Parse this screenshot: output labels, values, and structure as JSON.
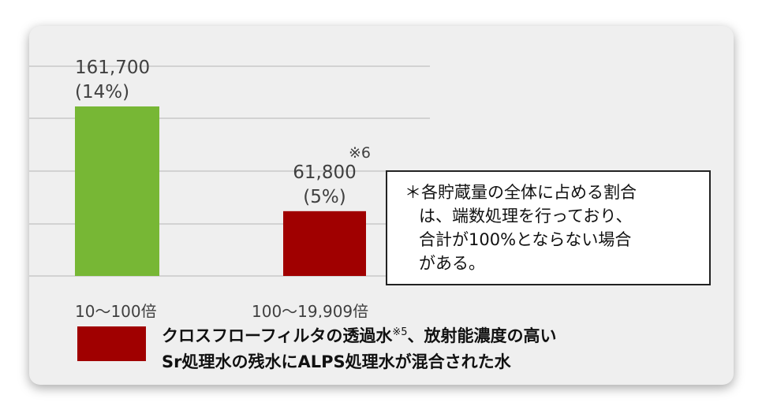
{
  "chart_data": {
    "type": "bar",
    "categories": [
      "10～100倍",
      "100～19,909倍"
    ],
    "values": [
      161700,
      61800
    ],
    "data_labels": [
      "161,700",
      "61,800"
    ],
    "percent_labels": [
      "(14%)",
      "(5%)"
    ],
    "colors": [
      "#77b735",
      "#a00000"
    ],
    "grid": true,
    "annotations": [
      {
        "bar_index": 1,
        "text": "※6"
      }
    ]
  },
  "note": {
    "lines": [
      "＊各貯蔵量の全体に占める割合",
      "は、端数処理を行っており、",
      "合計が100%とならない場合",
      "がある。"
    ]
  },
  "legend": {
    "color": "#a00000",
    "line1_a": "クロスフローフィルタの透過水",
    "line1_sup": "※5",
    "line1_b": "、放射能濃度の高い",
    "line2": "Sr処理水の残水にALPS処理水が混合された水"
  }
}
